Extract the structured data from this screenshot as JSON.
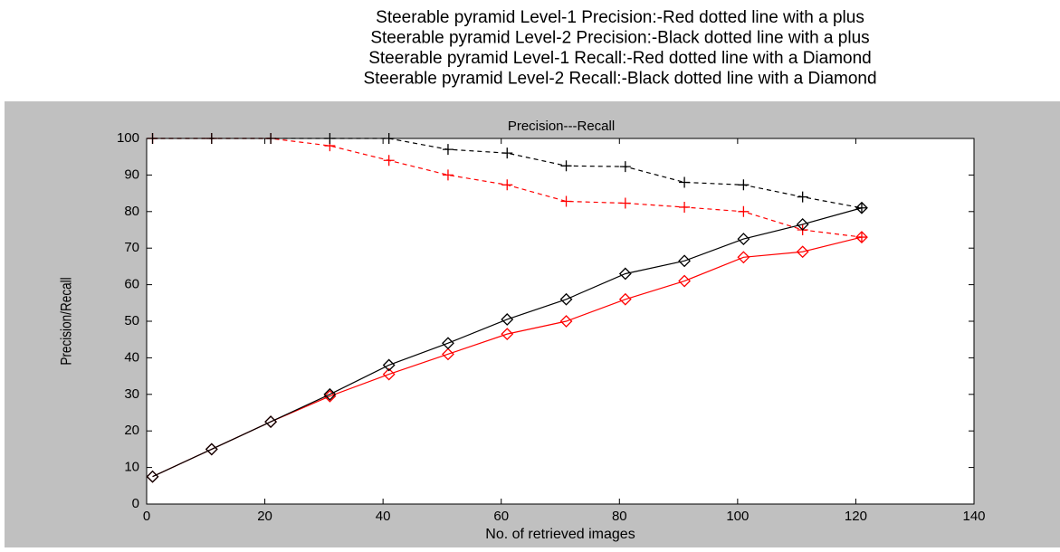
{
  "chart_data": {
    "type": "line",
    "title": "Precision---Recall",
    "xlabel": "No. of retrieved images",
    "ylabel": "Precision/Recall",
    "x": [
      1,
      11,
      21,
      31,
      41,
      51,
      61,
      71,
      81,
      91,
      101,
      111,
      121
    ],
    "series": [
      {
        "name": "Steerable pyramid Level-1 Precision:-Red dotted line with a plus",
        "color": "#ff0000",
        "marker": "plus",
        "dashed": true,
        "values": [
          100,
          100,
          100,
          98,
          94,
          90,
          87.3,
          82.8,
          82.3,
          81.2,
          80,
          75,
          73
        ]
      },
      {
        "name": "Steerable pyramid Level-2 Precision:-Black dotted line with a plus",
        "color": "#000000",
        "marker": "plus",
        "dashed": true,
        "values": [
          100,
          100,
          100,
          100,
          100,
          97,
          96,
          92.5,
          92.3,
          88,
          87.3,
          84,
          81
        ]
      },
      {
        "name": "Steerable pyramid Level-1 Recall:-Red dotted line with a Diamond",
        "color": "#ff0000",
        "marker": "diamond",
        "dashed": false,
        "values": [
          7.5,
          15,
          22.5,
          29.5,
          35.5,
          41,
          46.5,
          50,
          56,
          61,
          67.5,
          69,
          73
        ]
      },
      {
        "name": "Steerable pyramid Level-2 Recall:-Black dotted line with a Diamond",
        "color": "#000000",
        "marker": "diamond",
        "dashed": false,
        "values": [
          7.5,
          15,
          22.5,
          30,
          38,
          44,
          50.5,
          56,
          63,
          66.5,
          72.5,
          76.5,
          81
        ]
      }
    ],
    "xlim": [
      0,
      140
    ],
    "xticks": [
      0,
      20,
      40,
      60,
      80,
      100,
      120,
      140
    ],
    "ylim": [
      0,
      100
    ],
    "yticks": [
      0,
      10,
      20,
      30,
      40,
      50,
      60,
      70,
      80,
      90,
      100
    ],
    "grid": false
  }
}
